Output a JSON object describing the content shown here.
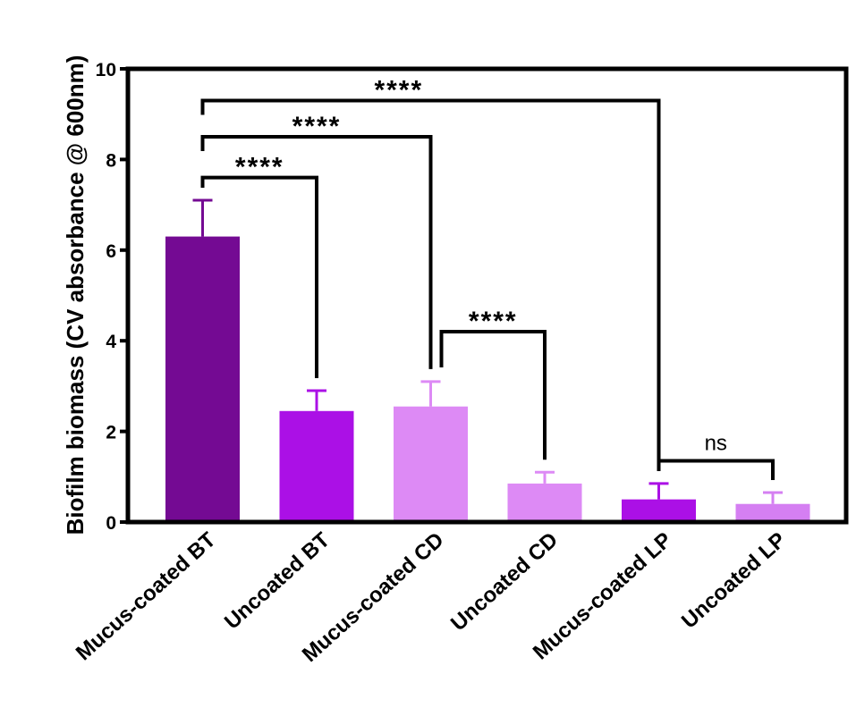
{
  "chart_data": {
    "type": "bar",
    "ylabel": "Biofilm biomass (CV absorbance @ 600nm)",
    "xlabel": "",
    "ylim": [
      0,
      10
    ],
    "yticks": [
      0,
      2,
      4,
      6,
      8,
      10
    ],
    "yticklabels": [
      "0",
      "2",
      "4",
      "6",
      "8",
      "10"
    ],
    "categories": [
      "Mucus-coated BT",
      "Uncoated BT",
      "Mucus-coated CD",
      "Uncoated CD",
      "Mucus-coated LP",
      "Uncoated LP"
    ],
    "values": [
      6.3,
      2.45,
      2.55,
      0.85,
      0.5,
      0.4
    ],
    "errors": [
      0.8,
      0.45,
      0.55,
      0.25,
      0.35,
      0.25
    ],
    "colors": [
      "#740a93",
      "#ab10e6",
      "#dd8af5",
      "#dd8af5",
      "#ab10e6",
      "#d57ff2"
    ],
    "grid": false,
    "significance": [
      {
        "from": 0,
        "to": 1,
        "label": "****",
        "y": 7.6
      },
      {
        "from": 0,
        "to": 2,
        "label": "****",
        "y": 8.5
      },
      {
        "from": 0,
        "to": 4,
        "label": "****",
        "y": 9.3
      },
      {
        "from": 2,
        "to": 3,
        "label": "****",
        "y": 4.2
      },
      {
        "from": 4,
        "to": 5,
        "label": "ns",
        "y": 1.35
      }
    ]
  }
}
